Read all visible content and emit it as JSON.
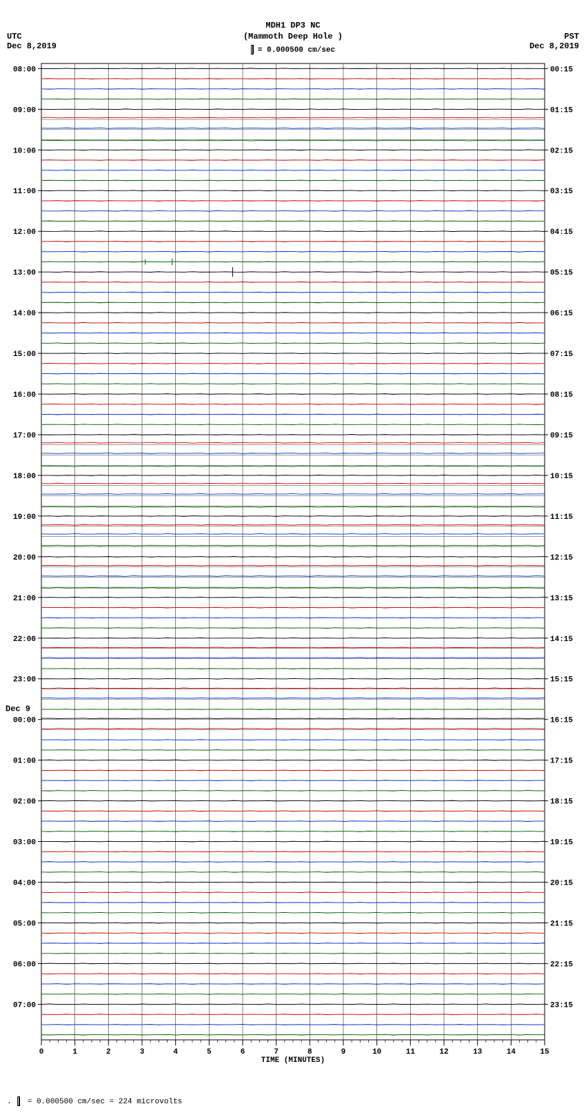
{
  "header": {
    "station_code": "MDH1 DP3 NC",
    "station_name": "(Mammoth Deep Hole )",
    "scale_label": "= 0.000500 cm/sec",
    "left_tz": "UTC",
    "left_date": "Dec 8,2019",
    "right_tz": "PST",
    "right_date": "Dec 8,2019"
  },
  "plot": {
    "background_color": "#ffffff",
    "grid_color": "#000000",
    "grid_line_width": 0.5,
    "frame_color": "#000000",
    "frame_width": 1,
    "n_traces": 96,
    "minutes": 15,
    "minor_ticks_per_minute": 4,
    "trace_colors": [
      "#000000",
      "#cc0000",
      "#0033cc",
      "#006600"
    ],
    "hour_ticks_left": [
      "08:00",
      "09:00",
      "10:00",
      "11:00",
      "12:00",
      "13:00",
      "14:00",
      "15:00",
      "16:00",
      "17:00",
      "18:00",
      "19:00",
      "20:00",
      "21:00",
      "22:00",
      "23:00",
      "00:00",
      "01:00",
      "02:00",
      "03:00",
      "04:00",
      "05:00",
      "06:00",
      "07:00"
    ],
    "hour_ticks_right": [
      "00:15",
      "01:15",
      "02:15",
      "03:15",
      "04:15",
      "05:15",
      "06:15",
      "07:15",
      "08:15",
      "09:15",
      "10:15",
      "11:15",
      "12:15",
      "13:15",
      "14:15",
      "15:15",
      "16:15",
      "17:15",
      "18:15",
      "19:15",
      "20:15",
      "21:15",
      "22:15",
      "23:15"
    ],
    "date_break_label": "Dec 9",
    "date_break_at_hour_index": 16,
    "tick_label_fontsize": 11,
    "xaxis_label": "TIME (MINUTES)",
    "x_tick_labels": [
      "0",
      "1",
      "2",
      "3",
      "4",
      "5",
      "6",
      "7",
      "8",
      "9",
      "10",
      "11",
      "12",
      "13",
      "14",
      "15"
    ],
    "offset_traces": [
      {
        "index": 5,
        "offset": -2.5
      },
      {
        "index": 6,
        "offset": -2.0
      },
      {
        "index": 7,
        "offset": 1.0
      },
      {
        "index": 37,
        "offset": -3.0
      },
      {
        "index": 38,
        "offset": -2.5
      },
      {
        "index": 39,
        "offset": 1.5
      },
      {
        "index": 41,
        "offset": -3.0
      },
      {
        "index": 42,
        "offset": -2.5
      },
      {
        "index": 43,
        "offset": 1.5
      },
      {
        "index": 45,
        "offset": -2.0
      },
      {
        "index": 46,
        "offset": -3.5
      },
      {
        "index": 47,
        "offset": -1.5
      },
      {
        "index": 49,
        "offset": -2.0
      },
      {
        "index": 50,
        "offset": -1.5
      },
      {
        "index": 51,
        "offset": 1.0
      },
      {
        "index": 57,
        "offset": -1.0
      },
      {
        "index": 58,
        "offset": -1.0
      },
      {
        "index": 61,
        "offset": -1.0
      },
      {
        "index": 62,
        "offset": -1.5
      },
      {
        "index": 64,
        "offset": -1.5
      },
      {
        "index": 65,
        "offset": -1.5
      }
    ],
    "spikes": [
      {
        "trace": 19,
        "minute": 3.1,
        "height": 4
      },
      {
        "trace": 19,
        "minute": 3.9,
        "height": 5
      },
      {
        "trace": 20,
        "minute": 5.7,
        "height": 7
      }
    ]
  },
  "footer": {
    "text": "= 0.000500 cm/sec =    224 microvolts",
    "prefix": "."
  }
}
